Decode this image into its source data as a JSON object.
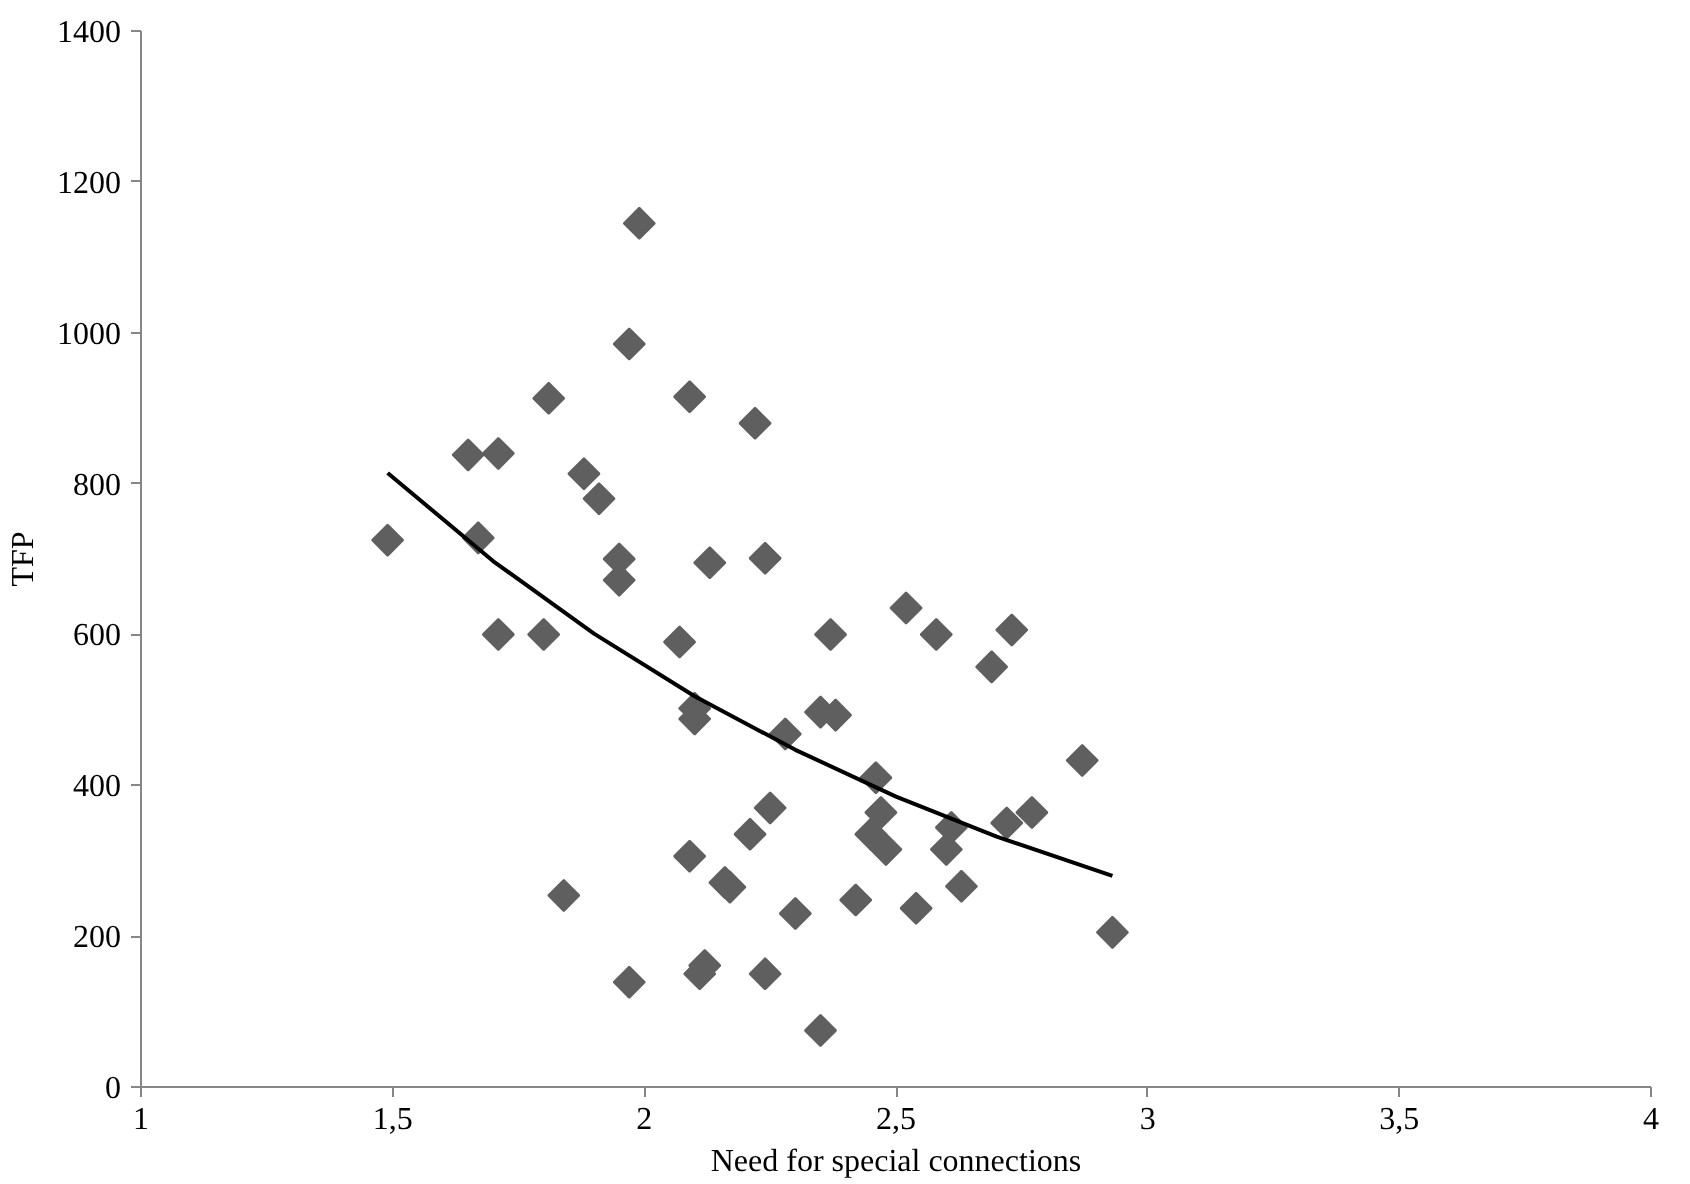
{
  "chart_data": {
    "type": "scatter",
    "xlabel": "Need for special connections",
    "ylabel": "TFP",
    "marker": "diamond",
    "grid": false,
    "xlim": [
      1,
      4
    ],
    "ylim": [
      0,
      1400
    ],
    "xticks": [
      1,
      {
        "value": 1.5,
        "label": "1,5"
      },
      2,
      {
        "value": 2.5,
        "label": "2,5"
      },
      3,
      {
        "value": 3.5,
        "label": "3,5"
      },
      4
    ],
    "yticks": [
      0,
      200,
      400,
      600,
      800,
      1000,
      1200,
      1400
    ],
    "series": [
      {
        "color": "#5f5f5f",
        "x": [
          1.49,
          1.65,
          1.67,
          1.71,
          1.71,
          1.8,
          1.81,
          1.84,
          1.88,
          1.91,
          1.95,
          1.95,
          1.97,
          1.97,
          1.99,
          2.09,
          2.09,
          2.07,
          2.12,
          2.11,
          2.1,
          2.1,
          2.13,
          2.16,
          2.22,
          2.21,
          2.24,
          2.24,
          2.25,
          2.28,
          2.3,
          2.35,
          2.38,
          2.37,
          2.35,
          2.17,
          2.42,
          2.54,
          2.63,
          2.46,
          2.45,
          2.47,
          2.48,
          2.61,
          2.6,
          2.72,
          2.77,
          2.87,
          2.93,
          2.52,
          2.58,
          2.73,
          2.69
        ],
        "values": [
          725,
          838,
          728,
          840,
          600,
          600,
          913,
          254,
          813,
          780,
          700,
          672,
          139,
          985,
          1145,
          915,
          306,
          590,
          161,
          150,
          502,
          488,
          695,
          271,
          880,
          335,
          701,
          150,
          370,
          468,
          230,
          497,
          493,
          600,
          75,
          265,
          248,
          237,
          266,
          410,
          335,
          364,
          315,
          344,
          315,
          350,
          364,
          433,
          205,
          635,
          600,
          606,
          557
        ]
      },
      {
        "type": "line",
        "color": "#000000",
        "marker": "none",
        "x": [
          1.49,
          1.7,
          1.9,
          2.1,
          2.3,
          2.5,
          2.7,
          2.93
        ],
        "values": [
          814,
          697,
          601,
          518,
          447,
          385,
          332,
          280
        ]
      }
    ]
  }
}
